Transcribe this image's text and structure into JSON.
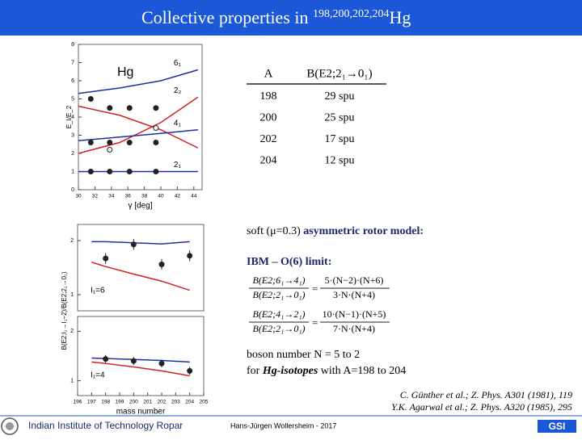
{
  "header": {
    "title": "Collective properties in ",
    "superscript": "198,200,202,204",
    "element": "Hg"
  },
  "table": {
    "headers": [
      "A",
      "B(E2;2₁→0₁)"
    ],
    "rows": [
      [
        "198",
        "29 spu"
      ],
      [
        "200",
        "25 spu"
      ],
      [
        "202",
        "17 spu"
      ],
      [
        "204",
        "12 spu"
      ]
    ]
  },
  "text": {
    "model_prefix": "soft (μ=0.3) ",
    "model_name": "asymmetric rotor model:",
    "ibm": "IBM – O(6) limit:",
    "boson_line": "boson number N = 5 to 2",
    "isotope_prefix": "for ",
    "isotope_name": "Hg-isotopes",
    "isotope_suffix": " with A=198 to 204"
  },
  "formulas": [
    {
      "lhs_num": "B(E2;6₁→4₁)",
      "lhs_den": "B(E2;2₁→0₁)",
      "eq": "=",
      "rhs_num": "5·(N−2)·(N+6)",
      "rhs_den": "3·N·(N+4)"
    },
    {
      "lhs_num": "B(E2;4₁→2₁)",
      "lhs_den": "B(E2;2₁→0₁)",
      "eq": "=",
      "rhs_num": "10·(N−1)·(N+5)",
      "rhs_den": "7·N·(N+4)"
    }
  ],
  "references": [
    "C. Günther et al.; Z. Phys. A301 (1981), 119",
    "Y.K. Agarwal et al.; Z. Phys. A320 (1985), 295"
  ],
  "footer": {
    "left": "Indian Institute of Technology Ropar",
    "center": "Hans-Jürgen Wollersheim - 2017"
  },
  "chart_data": [
    {
      "type": "scatter",
      "annotation": "Hg",
      "xlabel": "γ [deg]",
      "ylabel": "E_I/E_2",
      "xlim": [
        30,
        45
      ],
      "xticks": [
        30,
        32,
        34,
        36,
        38,
        40,
        42,
        44
      ],
      "ylim": [
        0,
        8
      ],
      "yticks": [
        0,
        1,
        2,
        3,
        4,
        5,
        6,
        7,
        8
      ],
      "series": [
        {
          "name": "6₁",
          "kind": "line",
          "color": "#1f2fa0",
          "x": [
            30,
            35,
            40,
            44.5
          ],
          "values": [
            5.3,
            5.6,
            6.0,
            6.6
          ]
        },
        {
          "name": "2₂",
          "kind": "line",
          "color": "#d42020",
          "x": [
            30,
            35,
            40,
            44.5
          ],
          "values": [
            2.0,
            2.6,
            3.7,
            5.1
          ]
        },
        {
          "kind": "line",
          "color": "#d42020",
          "x": [
            30,
            35,
            40,
            44.5
          ],
          "values": [
            4.6,
            4.1,
            3.3,
            2.3
          ]
        },
        {
          "name": "4₁",
          "kind": "line",
          "color": "#1f2fa0",
          "x": [
            30,
            35,
            40,
            44.5
          ],
          "values": [
            2.7,
            2.9,
            3.1,
            3.3
          ]
        },
        {
          "name": "2₁",
          "kind": "line",
          "color": "#1f2fa0",
          "x": [
            30,
            35,
            40,
            44.5
          ],
          "values": [
            1.0,
            1.0,
            1.0,
            1.0
          ]
        },
        {
          "kind": "points",
          "color": "#222222",
          "x": [
            31.5,
            33.8,
            36.2,
            39.4
          ],
          "values": [
            1,
            1,
            1,
            1
          ]
        },
        {
          "kind": "points",
          "color": "#222222",
          "x": [
            31.5,
            33.8,
            36.2,
            39.4
          ],
          "values": [
            2.6,
            2.6,
            2.6,
            2.6
          ]
        },
        {
          "kind": "points",
          "color": "#222222",
          "x": [
            31.5,
            33.8,
            36.2,
            39.4
          ],
          "values": [
            5.0,
            4.5,
            4.5,
            4.5
          ]
        },
        {
          "kind": "open",
          "color": "#222222",
          "x": [
            33.8,
            39.4
          ],
          "values": [
            2.2,
            3.4
          ]
        }
      ]
    },
    {
      "type": "scatter",
      "annotation": "I₁=6",
      "ylabel": "B(E2;I₁→I₁−2)/B(E2;2₁→0₁)",
      "xlim": [
        196,
        205
      ],
      "ylim": [
        0.7,
        2.3
      ],
      "yticks": [
        1,
        2
      ],
      "series": [
        {
          "kind": "line",
          "color": "#1f2fa0",
          "x": [
            197,
            198,
            200,
            202,
            204
          ],
          "values": [
            1.98,
            1.98,
            1.96,
            1.94,
            1.98
          ]
        },
        {
          "kind": "line",
          "color": "#d42020",
          "x": [
            197,
            198,
            200,
            202,
            204
          ],
          "values": [
            1.6,
            1.52,
            1.38,
            1.25,
            1.08
          ]
        },
        {
          "kind": "points",
          "color": "#222222",
          "x": [
            198,
            200,
            202,
            204
          ],
          "values": [
            1.67,
            1.93,
            1.56,
            1.72
          ],
          "errors": [
            0.1,
            0.1,
            0.1,
            0.1
          ]
        }
      ]
    },
    {
      "type": "scatter",
      "annotation": "I₁=4",
      "xlabel": "mass number",
      "xlim": [
        196,
        205
      ],
      "xticks": [
        196,
        197,
        198,
        199,
        200,
        201,
        202,
        203,
        204,
        205
      ],
      "ylim": [
        0.7,
        2.3
      ],
      "yticks": [
        1,
        2
      ],
      "series": [
        {
          "kind": "line",
          "color": "#1f2fa0",
          "x": [
            197,
            198,
            200,
            202,
            204
          ],
          "values": [
            1.46,
            1.45,
            1.43,
            1.41,
            1.38
          ]
        },
        {
          "kind": "line",
          "color": "#d42020",
          "x": [
            197,
            198,
            200,
            202,
            204
          ],
          "values": [
            1.38,
            1.35,
            1.28,
            1.2,
            1.1
          ]
        },
        {
          "kind": "points",
          "color": "#222222",
          "x": [
            198,
            200,
            202,
            204
          ],
          "values": [
            1.44,
            1.4,
            1.35,
            1.2
          ],
          "errors": [
            0.08,
            0.08,
            0.08,
            0.08
          ]
        }
      ]
    }
  ]
}
